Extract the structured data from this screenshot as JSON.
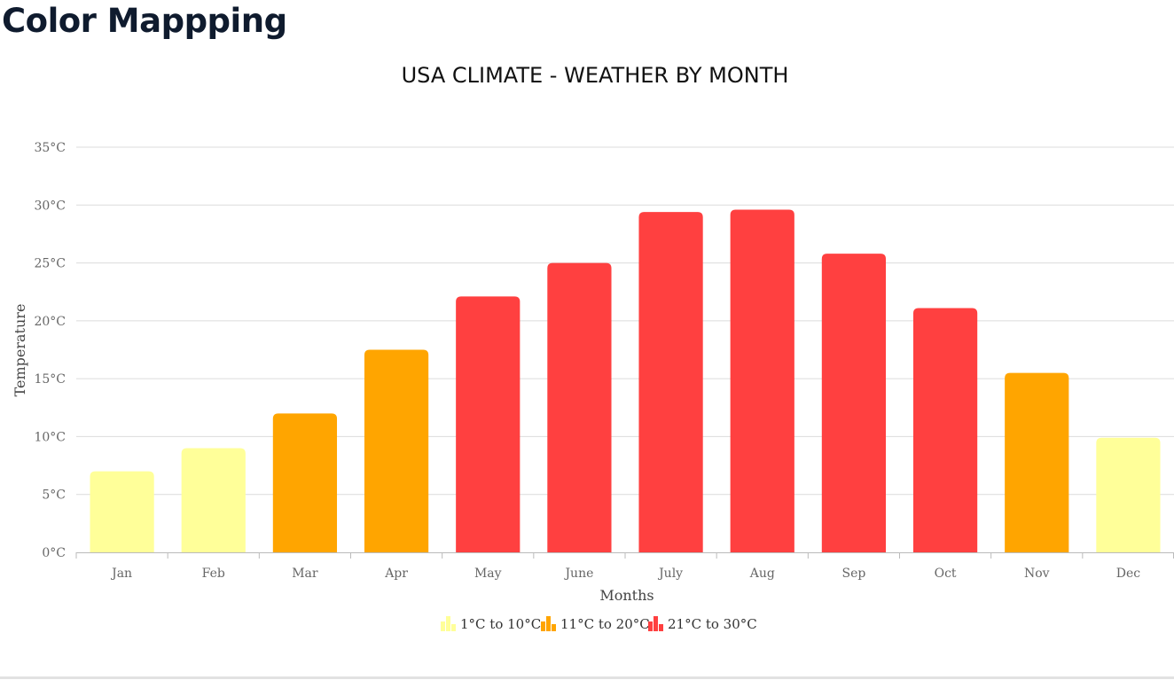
{
  "page": {
    "heading": "Color Mappping"
  },
  "chart_data": {
    "type": "bar",
    "title": "USA CLIMATE - WEATHER BY MONTH",
    "xlabel": "Months",
    "ylabel": "Temperature",
    "ylim": [
      0,
      35
    ],
    "y_ticks": [
      "0°C",
      "5°C",
      "10°C",
      "15°C",
      "20°C",
      "25°C",
      "30°C",
      "35°C"
    ],
    "grid": true,
    "legend_position": "bottom-center",
    "categories": [
      "Jan",
      "Feb",
      "Mar",
      "Apr",
      "May",
      "June",
      "July",
      "Aug",
      "Sep",
      "Oct",
      "Nov",
      "Dec"
    ],
    "values": [
      7,
      9,
      12,
      17.5,
      22.1,
      25,
      29.4,
      29.6,
      25.8,
      21.1,
      15.5,
      9.9
    ],
    "color_ranges": [
      {
        "label": "1°C to 10°C",
        "color": "#ffff99",
        "max": 10.5
      },
      {
        "label": "11°C to 20°C",
        "color": "#ffa500",
        "max": 20.5
      },
      {
        "label": "21°C to 30°C",
        "color": "#ff4040",
        "max": 1000
      }
    ]
  }
}
